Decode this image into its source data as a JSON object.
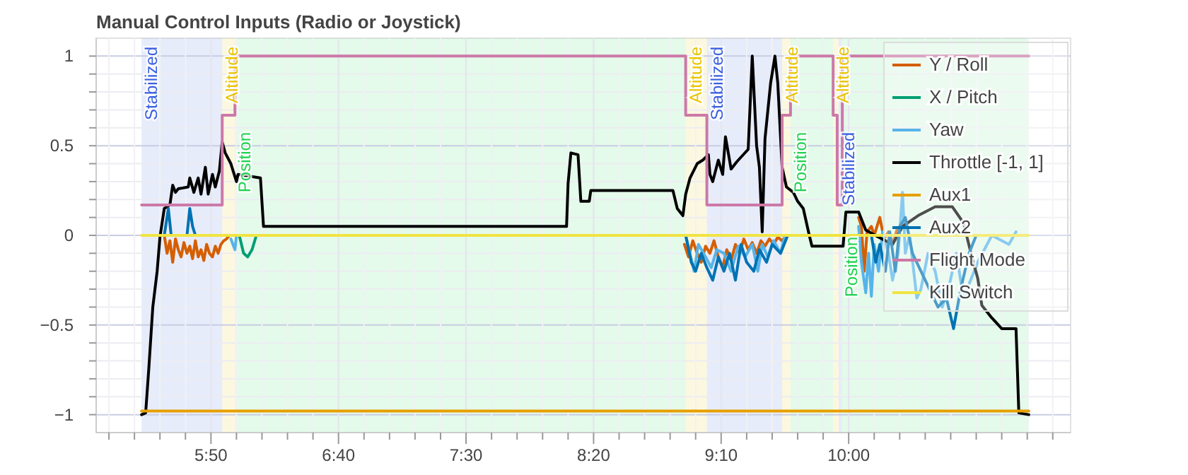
{
  "chart_data": {
    "type": "line",
    "title": "Manual Control Inputs (Radio or Joystick)",
    "xlim": [
      305,
      687
    ],
    "xticks": [
      {
        "value": 310,
        "label": null
      },
      {
        "value": 320,
        "label": null
      },
      {
        "value": 330,
        "label": null
      },
      {
        "value": 340,
        "label": null
      },
      {
        "value": 350,
        "label": "5:50"
      },
      {
        "value": 360,
        "label": null
      },
      {
        "value": 370,
        "label": null
      },
      {
        "value": 380,
        "label": null
      },
      {
        "value": 390,
        "label": null
      },
      {
        "value": 400,
        "label": "6:40"
      },
      {
        "value": 410,
        "label": null
      },
      {
        "value": 420,
        "label": null
      },
      {
        "value": 430,
        "label": null
      },
      {
        "value": 440,
        "label": null
      },
      {
        "value": 450,
        "label": "7:30"
      },
      {
        "value": 460,
        "label": null
      },
      {
        "value": 470,
        "label": null
      },
      {
        "value": 480,
        "label": null
      },
      {
        "value": 490,
        "label": null
      },
      {
        "value": 500,
        "label": "8:20"
      },
      {
        "value": 510,
        "label": null
      },
      {
        "value": 520,
        "label": null
      },
      {
        "value": 530,
        "label": null
      },
      {
        "value": 540,
        "label": null
      },
      {
        "value": 550,
        "label": "9:10"
      },
      {
        "value": 560,
        "label": null
      },
      {
        "value": 570,
        "label": null
      },
      {
        "value": 580,
        "label": null
      },
      {
        "value": 590,
        "label": null
      },
      {
        "value": 600,
        "label": "10:00"
      },
      {
        "value": 610,
        "label": null
      },
      {
        "value": 620,
        "label": null
      },
      {
        "value": 630,
        "label": null
      },
      {
        "value": 640,
        "label": null
      },
      {
        "value": 650,
        "label": null
      },
      {
        "value": 660,
        "label": null
      },
      {
        "value": 670,
        "label": null
      },
      {
        "value": 680,
        "label": null
      }
    ],
    "ylim": [
      -1.1,
      1.1
    ],
    "yticks": [
      {
        "value": -1,
        "label": "−1"
      },
      {
        "value": -0.9,
        "label": null
      },
      {
        "value": -0.8,
        "label": null
      },
      {
        "value": -0.7,
        "label": null
      },
      {
        "value": -0.6,
        "label": null
      },
      {
        "value": -0.5,
        "label": "−0.5"
      },
      {
        "value": -0.4,
        "label": null
      },
      {
        "value": -0.3,
        "label": null
      },
      {
        "value": -0.2,
        "label": null
      },
      {
        "value": -0.1,
        "label": null
      },
      {
        "value": 0,
        "label": "0"
      },
      {
        "value": 0.1,
        "label": null
      },
      {
        "value": 0.2,
        "label": null
      },
      {
        "value": 0.3,
        "label": null
      },
      {
        "value": 0.4,
        "label": null
      },
      {
        "value": 0.5,
        "label": "0.5"
      },
      {
        "value": 0.6,
        "label": null
      },
      {
        "value": 0.7,
        "label": null
      },
      {
        "value": 0.8,
        "label": null
      },
      {
        "value": 0.9,
        "label": null
      },
      {
        "value": 1,
        "label": "1"
      }
    ],
    "grid": true,
    "legend": "top right",
    "bands": [
      {
        "axis": "x",
        "from": 322.8,
        "to": 354.4,
        "label": "Stabilized",
        "color": "#3a5fe0"
      },
      {
        "axis": "x",
        "from": 354.4,
        "to": 359.4,
        "label": "Altitude",
        "color": "#e8c400"
      },
      {
        "axis": "x",
        "from": 359.4,
        "to": 536.1,
        "label": "Position",
        "color": "#1fd24f"
      },
      {
        "axis": "x",
        "from": 536.1,
        "to": 544.4,
        "label": "Altitude",
        "color": "#e8c400"
      },
      {
        "axis": "x",
        "from": 544.4,
        "to": 573.9,
        "label": "Stabilized",
        "color": "#3a5fe0"
      },
      {
        "axis": "x",
        "from": 573.9,
        "to": 577.2,
        "label": "Altitude",
        "color": "#e8c400"
      },
      {
        "axis": "x",
        "from": 577.2,
        "to": 593.9,
        "label": "Position",
        "color": "#1fd24f"
      },
      {
        "axis": "x",
        "from": 593.9,
        "to": 596.1,
        "label": "Altitude",
        "color": "#e8c400"
      },
      {
        "axis": "x",
        "from": 596.1,
        "to": 597.2,
        "label": "Stabilized",
        "color": "#3a5fe0"
      },
      {
        "axis": "x",
        "from": 597.2,
        "to": 670.6,
        "label": "Position",
        "color": "#1fd24f"
      }
    ],
    "series": [
      {
        "name": "Y / Roll",
        "color": "#d55e00",
        "x": [
          331.7,
          332.8,
          333.9,
          335,
          336.1,
          337.2,
          338.3,
          339.4,
          340.6,
          341.7,
          342.8,
          343.9,
          345,
          346.1,
          347.2,
          348.3,
          349.4,
          350.6,
          351.7,
          352.8,
          353.9,
          355,
          356.1,
          357.2,
          450,
          535.6,
          537.2,
          538.9,
          540.6,
          542.2,
          543.9,
          545.6,
          547.2,
          548.9,
          550.6,
          552.2,
          553.9,
          555.6,
          557.2,
          558.9,
          560.6,
          562.2,
          563.9,
          565.6,
          567.2,
          568.9,
          570.6,
          572.2,
          573.9,
          575.6,
          590,
          603.9,
          605,
          606.1,
          607.2,
          608.9,
          610,
          612.2,
          613.9,
          615.6,
          617.2,
          618.9
        ],
        "values": [
          0,
          -0.1,
          -0.03,
          -0.15,
          -0.02,
          -0.08,
          -0.12,
          -0.04,
          -0.1,
          -0.06,
          -0.13,
          -0.03,
          -0.12,
          -0.08,
          -0.14,
          -0.05,
          -0.1,
          -0.12,
          -0.06,
          -0.1,
          -0.05,
          -0.03,
          -0.02,
          0,
          null,
          -0.05,
          -0.12,
          -0.03,
          -0.1,
          -0.15,
          -0.06,
          -0.1,
          -0.03,
          -0.12,
          -0.18,
          -0.08,
          -0.14,
          -0.05,
          -0.1,
          -0.02,
          -0.08,
          -0.04,
          -0.1,
          -0.03,
          -0.06,
          -0.02,
          -0.05,
          -0.01,
          -0.03,
          0,
          null,
          0.1,
          0.05,
          -0.2,
          0.02,
          0.05,
          0,
          0.1,
          -0.02,
          0.02,
          -0.05,
          0.03
        ]
      },
      {
        "name": "X / Pitch",
        "color": "#009e73",
        "x": [
          361.1,
          362.8,
          364.4,
          366.1,
          367.8
        ],
        "values": [
          0,
          -0.1,
          -0.12,
          -0.08,
          0
        ]
      },
      {
        "name": "Yaw",
        "color": "#56b4e9",
        "x": [
          357.8,
          359.4,
          360,
          450,
          536.1,
          537.8,
          539.4,
          541.1,
          543.9,
          546.1,
          548.3,
          551.1,
          553.9,
          556.7,
          559.4,
          562.2,
          564.4,
          566.1,
          568.3,
          570.6,
          573.3,
          575,
          590,
          603.9,
          605,
          606.7,
          607.8,
          608.9,
          610,
          611.7,
          613.3,
          615.6,
          617.2,
          619.4,
          621.1,
          622.2,
          623.9,
          626.7,
          628.3,
          631.1,
          633.9,
          636.7,
          639.4,
          642.2,
          645,
          650.6,
          656.1,
          662.8,
          665.6
        ],
        "values": [
          -0.02,
          -0.08,
          0,
          null,
          0,
          -0.1,
          -0.2,
          -0.05,
          -0.12,
          -0.18,
          -0.08,
          -0.1,
          -0.2,
          -0.06,
          -0.12,
          -0.05,
          -0.2,
          -0.05,
          -0.12,
          -0.03,
          -0.1,
          0,
          null,
          0.05,
          -0.15,
          -0.32,
          -0.1,
          -0.34,
          -0.05,
          -0.2,
          0.02,
          -0.1,
          -0.25,
          -0.1,
          0.24,
          -0.1,
          0,
          -0.35,
          -0.3,
          -0.1,
          -0.2,
          -0.4,
          -0.28,
          -0.1,
          -0.35,
          -0.15,
          0,
          -0.05,
          0.02
        ]
      },
      {
        "name": "Throttle [-1, 1]",
        "color": "#000000",
        "x": [
          322.8,
          324.4,
          325.6,
          327.2,
          328.9,
          330,
          331.7,
          333.9,
          335,
          336.1,
          337.2,
          341.1,
          341.7,
          343.3,
          345,
          346.1,
          347.8,
          348.9,
          350.6,
          351.7,
          353.3,
          354.4,
          355.6,
          357.8,
          360,
          360.6,
          369.4,
          370.6,
          489.4,
          490,
          491.1,
          493.9,
          495,
          498.3,
          498.9,
          531.1,
          532.8,
          535,
          536.1,
          537.8,
          540.6,
          542.8,
          545,
          545.6,
          546.7,
          548.9,
          550.6,
          551.7,
          553.9,
          556.1,
          560.6,
          562.2,
          563.9,
          565,
          566.1,
          567.2,
          569.4,
          571.1,
          572.2,
          573.9,
          575.6,
          578.3,
          580,
          582.2,
          584.4,
          585.6,
          597.8,
          598.9,
          603.9,
          606.7,
          611.7,
          617.2,
          621.1,
          627.2,
          633.9,
          640.6,
          645,
          648.3,
          650.6,
          652.2,
          656.1,
          660,
          665.6,
          666.7,
          670.6
        ],
        "values": [
          -1,
          -0.99,
          -0.75,
          -0.4,
          -0.2,
          -0.01,
          0.15,
          0.17,
          0.28,
          0.24,
          0.26,
          0.27,
          0.32,
          0.24,
          0.32,
          0.23,
          0.38,
          0.23,
          0.34,
          0.27,
          0.36,
          0.52,
          0.46,
          0.4,
          0.3,
          0.34,
          0.32,
          0.05,
          0.05,
          0.29,
          0.46,
          0.45,
          0.19,
          0.19,
          0.25,
          0.25,
          0.15,
          0.11,
          0.23,
          0.32,
          0.4,
          0.42,
          0.45,
          0.34,
          0.3,
          0.42,
          0.34,
          0.55,
          0.37,
          0.41,
          0.48,
          1,
          0.5,
          0.38,
          0.02,
          0.54,
          0.85,
          1,
          0.85,
          0.38,
          0.27,
          0.24,
          0.19,
          0.15,
          0.01,
          -0.06,
          -0.06,
          0.13,
          0.13,
          0.03,
          -0.01,
          -0.05,
          0.05,
          0.11,
          0.16,
          0.16,
          0.07,
          -0.12,
          -0.24,
          -0.39,
          -0.46,
          -0.52,
          -0.52,
          -0.99,
          -1
        ]
      },
      {
        "name": "Aux1",
        "color": "#e69f00",
        "x": [
          322.8,
          670.6
        ],
        "values": [
          -0.98,
          -0.98
        ]
      },
      {
        "name": "Aux2",
        "color": "#0072b2",
        "x": [
          331.7,
          333.3,
          334.4,
          340.6,
          341.7,
          342.8,
          343.9,
          450,
          536.1,
          538.3,
          540,
          542.2,
          544.4,
          546.7,
          548.9,
          551.1,
          553.3,
          555.6,
          557.8,
          560,
          562.8,
          565,
          567.8,
          570,
          573.3,
          576.1,
          590,
          608.9,
          610.6,
          612.2,
          614.4,
          616.1,
          618.3,
          620,
          622.2,
          625,
          630,
          635,
          638.3,
          641.1,
          643.9,
          647.2,
          650
        ],
        "values": [
          0,
          0.15,
          0,
          0,
          0.15,
          0.05,
          0,
          null,
          0,
          -0.15,
          -0.2,
          -0.1,
          -0.18,
          -0.25,
          -0.12,
          -0.2,
          -0.1,
          -0.25,
          -0.05,
          -0.15,
          -0.2,
          -0.08,
          -0.15,
          -0.05,
          -0.1,
          0,
          null,
          0,
          -0.15,
          -0.05,
          -0.2,
          0.02,
          -0.2,
          0.05,
          0.1,
          -0.1,
          -0.25,
          -0.4,
          -0.35,
          -0.52,
          -0.3,
          -0.1,
          0
        ]
      },
      {
        "name": "Flight Mode",
        "type": "step",
        "color": "#cc79a7",
        "x": [
          322.8,
          354.4,
          359.4,
          536.1,
          544.4,
          573.9,
          577.2,
          593.9,
          595.5,
          597.5,
          670.6
        ],
        "values": [
          0.17,
          0.67,
          1,
          0.67,
          0.17,
          0.67,
          1,
          0.67,
          0.17,
          1,
          1
        ]
      },
      {
        "name": "Kill Switch",
        "color": "#f0e442",
        "x": [
          322.8,
          670.6
        ],
        "values": [
          0,
          0
        ]
      }
    ]
  }
}
